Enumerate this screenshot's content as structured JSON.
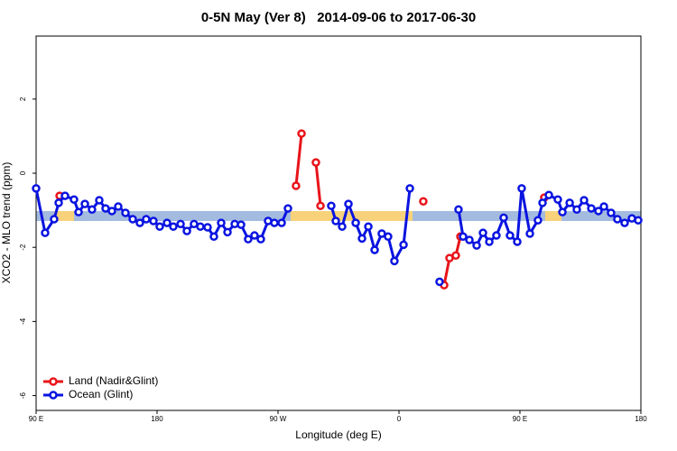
{
  "chart_data": {
    "type": "line",
    "title": "0-5N May (Ver 8)   2014-09-06 to 2017-06-30",
    "xlabel": "Longitude (deg E)",
    "ylabel": "XCO2 - MLO trend (ppm)",
    "xlim": [
      90,
      540
    ],
    "ylim": [
      -6.4,
      3.7
    ],
    "xticks": [
      {
        "value": 90,
        "label": "90 E"
      },
      180,
      {
        "value": 270,
        "label": "90 W"
      },
      {
        "value": 360,
        "label": "0"
      },
      {
        "value": 450,
        "label": "90 E"
      },
      {
        "value": 540,
        "label": "180"
      }
    ],
    "yticks": [
      -6,
      -4,
      -2,
      0,
      2
    ],
    "legend": "bottom-left",
    "series": [
      {
        "name": "Land (Nadir&Glint)",
        "color": "#e8141a",
        "x": [
          107.5,
          null,
          283.4,
          287.5,
          null,
          298.2,
          301.6,
          null,
          378.1,
          null,
          393.6,
          397.6,
          402.3,
          405.7,
          null,
          468.1
        ],
        "values": [
          -0.61,
          null,
          -0.34,
          1.07,
          null,
          0.29,
          -0.88,
          null,
          -0.76,
          null,
          -3.02,
          -2.29,
          -2.22,
          -1.71,
          null,
          -0.66
        ]
      },
      {
        "name": "Ocean (Glint)",
        "color": "#0a14e0",
        "x": [
          90.0,
          96.7,
          103.4,
          106.8,
          111.5,
          118.2,
          121.6,
          126.3,
          131.6,
          137.0,
          141.7,
          146.4,
          151.1,
          156.5,
          161.9,
          167.2,
          171.9,
          177.3,
          182.0,
          187.4,
          192.1,
          197.5,
          202.2,
          207.5,
          212.2,
          217.6,
          222.3,
          227.7,
          232.4,
          237.8,
          242.5,
          247.8,
          252.5,
          257.2,
          262.6,
          267.3,
          272.7,
          277.4,
          null,
          309.6,
          313.0,
          317.7,
          322.4,
          327.8,
          332.5,
          337.2,
          341.9,
          347.2,
          351.9,
          356.6,
          363.4,
          368.1,
          null,
          390.2,
          null,
          404.3,
          407.7,
          412.4,
          417.8,
          422.5,
          427.2,
          432.5,
          437.9,
          442.6,
          448.0,
          451.3,
          457.4,
          463.4,
          466.8,
          471.5,
          478.2,
          481.6,
          487.0,
          492.3,
          497.7,
          503.1,
          508.4,
          512.5,
          517.8,
          522.5,
          527.9,
          533.3,
          538.0
        ],
        "values": [
          -0.41,
          -1.61,
          -1.24,
          -0.8,
          -0.61,
          -0.71,
          -1.05,
          -0.83,
          -0.98,
          -0.73,
          -0.95,
          -1.02,
          -0.9,
          -1.07,
          -1.24,
          -1.34,
          -1.24,
          -1.29,
          -1.44,
          -1.34,
          -1.44,
          -1.37,
          -1.56,
          -1.37,
          -1.44,
          -1.46,
          -1.71,
          -1.34,
          -1.59,
          -1.37,
          -1.39,
          -1.78,
          -1.68,
          -1.78,
          -1.29,
          -1.34,
          -1.34,
          -0.95,
          null,
          -0.88,
          -1.29,
          -1.44,
          -0.83,
          -1.34,
          -1.76,
          -1.44,
          -2.07,
          -1.63,
          -1.71,
          -2.37,
          -1.93,
          -0.41,
          null,
          -2.93,
          null,
          -0.98,
          -1.71,
          -1.8,
          -1.95,
          -1.61,
          -1.85,
          -1.68,
          -1.2,
          -1.68,
          -1.85,
          -0.41,
          -1.63,
          -1.27,
          -0.8,
          -0.59,
          -0.71,
          -1.05,
          -0.8,
          -0.98,
          -0.73,
          -0.95,
          -1.02,
          -0.9,
          -1.07,
          -1.24,
          -1.34,
          -1.22,
          -1.27
        ]
      }
    ]
  }
}
